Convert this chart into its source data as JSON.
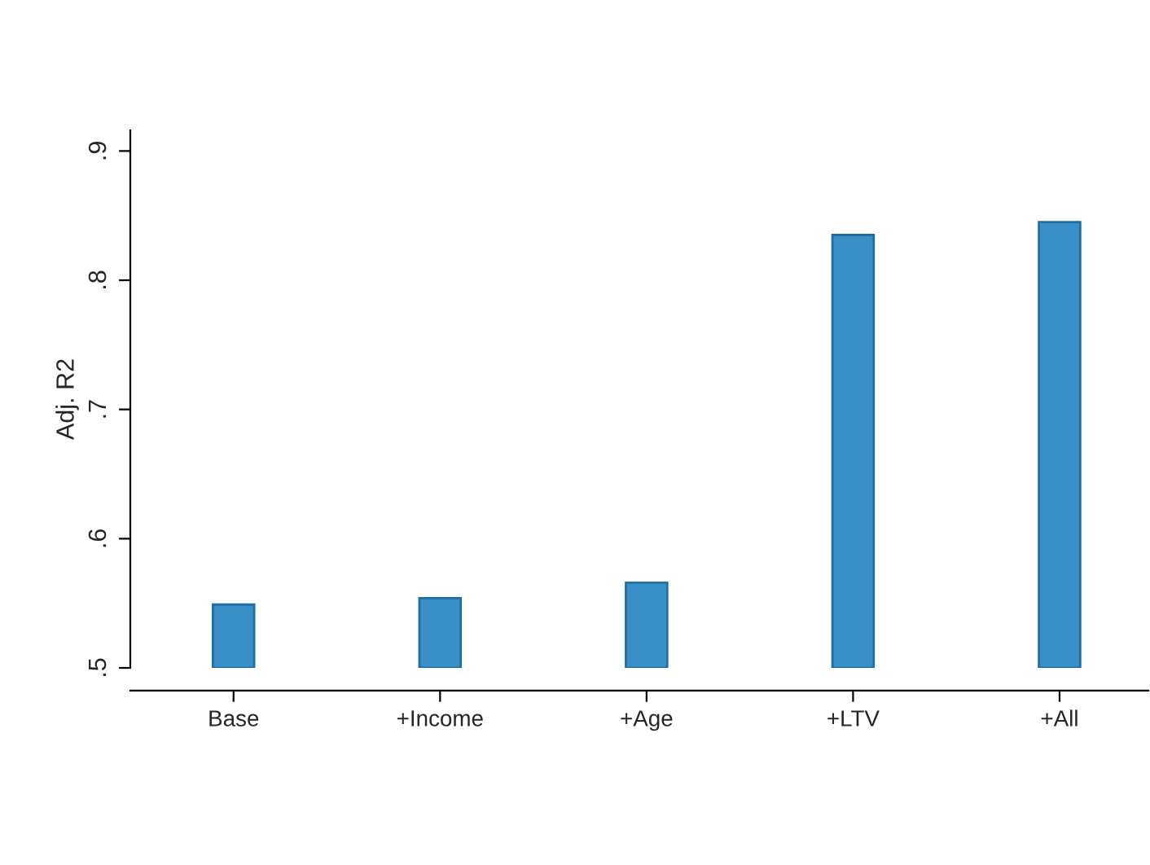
{
  "chart_data": {
    "type": "bar",
    "ylabel": "Adj. R2",
    "categories": [
      "Base",
      "+Income",
      "+Age",
      "+LTV",
      "+All"
    ],
    "values": [
      0.549,
      0.554,
      0.566,
      0.835,
      0.845
    ],
    "color": "#3a8fc6",
    "ylim": [
      0.5,
      0.916
    ],
    "yticks": [
      {
        "value": 0.5,
        "label": ".5"
      },
      {
        "value": 0.6,
        "label": ".6"
      },
      {
        "value": 0.7,
        "label": ".7"
      },
      {
        "value": 0.8,
        "label": ".8"
      },
      {
        "value": 0.9,
        "label": ".9"
      }
    ],
    "grid": false,
    "legend": false
  }
}
